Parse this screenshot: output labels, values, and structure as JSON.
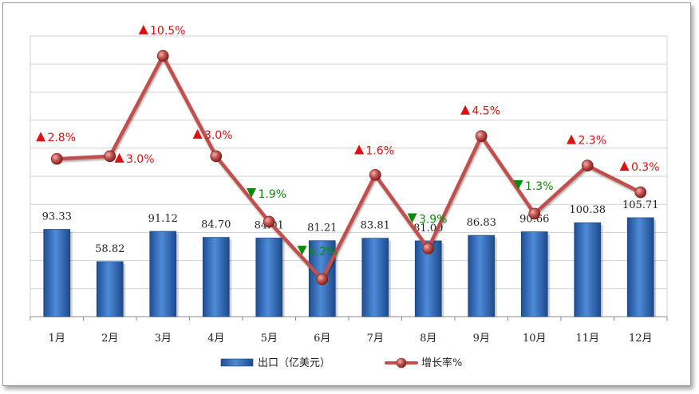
{
  "chart_data": {
    "type": "bar",
    "categories": [
      "1月",
      "2月",
      "3月",
      "4月",
      "5月",
      "6月",
      "7月",
      "8月",
      "9月",
      "10月",
      "11月",
      "12月"
    ],
    "series": [
      {
        "name": "出口（亿美元）",
        "type": "bar",
        "values": [
          93.33,
          58.82,
          91.12,
          84.7,
          84.01,
          81.21,
          83.81,
          81.0,
          86.83,
          90.66,
          100.38,
          105.71
        ],
        "labels": [
          "93.33",
          "58.82",
          "91.12",
          "84.70",
          "84.01",
          "81.21",
          "83.81",
          "81.00",
          "86.83",
          "90.66",
          "100.38",
          "105.71"
        ],
        "color": "#3a6fbf"
      },
      {
        "name": "增长率%",
        "type": "line",
        "values": [
          2.8,
          3.0,
          10.5,
          3.0,
          -1.9,
          -6.2,
          1.6,
          -3.9,
          4.5,
          -1.3,
          2.3,
          0.3
        ],
        "labels": [
          "2.8%",
          "3.0%",
          "10.5%",
          "3.0%",
          "1.9%",
          "6.2%",
          "1.6%",
          "3.9%",
          "4.5%",
          "1.3%",
          "2.3%",
          "0.3%"
        ],
        "color": "#c0504d"
      }
    ],
    "bar_axis_range": [
      0,
      300
    ],
    "line_axis_range": [
      -9,
      12
    ],
    "grid": true,
    "legend_position": "bottom",
    "legend": [
      "出口（亿美元）",
      "增长率%"
    ],
    "up_color": "#e01010",
    "down_color": "#0a8a0a"
  }
}
